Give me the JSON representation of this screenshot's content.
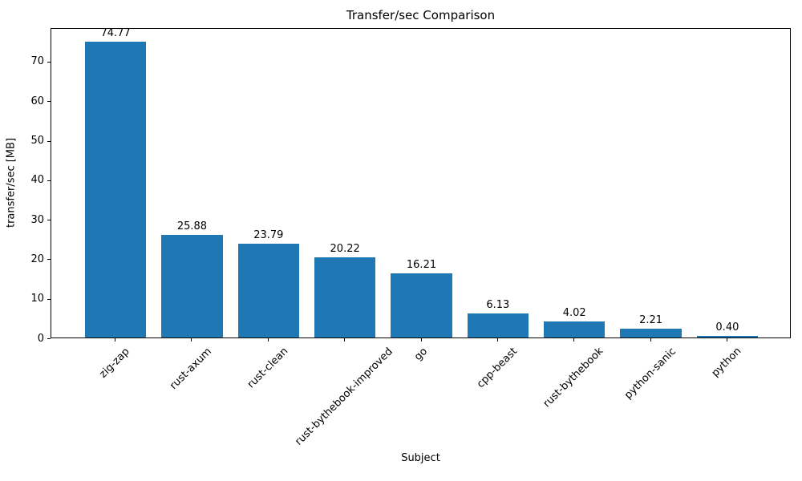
{
  "chart_data": {
    "type": "bar",
    "title": "Transfer/sec Comparison",
    "xlabel": "Subject",
    "ylabel": "transfer/sec [MB]",
    "categories": [
      "zig-zap",
      "rust-axum",
      "rust-clean",
      "rust-bythebook-improved",
      "go",
      "cpp-beast",
      "rust-bythebook",
      "python-sanic",
      "python"
    ],
    "values": [
      74.77,
      25.88,
      23.79,
      20.22,
      16.21,
      6.13,
      4.02,
      2.21,
      0.4
    ],
    "value_labels": [
      "74.77",
      "25.88",
      "23.79",
      "20.22",
      "16.21",
      "6.13",
      "4.02",
      "2.21",
      "0.40"
    ],
    "yticks": [
      0,
      10,
      20,
      30,
      40,
      50,
      60,
      70
    ],
    "ylim": [
      0,
      78.5
    ],
    "grid": false,
    "legend_position": "none",
    "bar_color": "#1f77b4",
    "text_color": "#000000",
    "spine_color": "#000000",
    "background_color": "#ffffff"
  }
}
